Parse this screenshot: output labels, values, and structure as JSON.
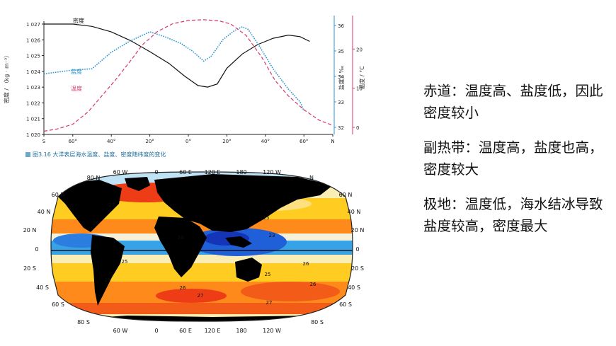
{
  "figure": {
    "caption": "图3.16  大洋表层海水温度、盐度、密度随纬度的变化"
  },
  "chart_data": {
    "type": "line",
    "x_ticks": [
      "S",
      "60°",
      "40°",
      "20°",
      "0°",
      "20°",
      "40°",
      "60°",
      "N"
    ],
    "x": [
      -75,
      -60,
      -40,
      -20,
      0,
      20,
      40,
      60,
      75
    ],
    "ylabel_density": "密度 / （kg · m⁻³）",
    "ylabel_salinity": "盐度 / ‰",
    "ylabel_temperature": "温度 / °C",
    "density_ticks": [
      "1 027",
      "1 026",
      "1 025",
      "1 024",
      "1 023",
      "1 022",
      "1 021",
      "1 020"
    ],
    "salinity_ticks": [
      "36",
      "35",
      "34",
      "33",
      "32"
    ],
    "temperature_ticks": [
      "20",
      "10",
      "0"
    ],
    "series": [
      {
        "name": "密度",
        "axis": "density",
        "color": "#111111",
        "points": [
          [
            -75,
            1027.0
          ],
          [
            -60,
            1027.0
          ],
          [
            -50,
            1026.85
          ],
          [
            -40,
            1026.5
          ],
          [
            -30,
            1025.95
          ],
          [
            -20,
            1025.25
          ],
          [
            -10,
            1024.5
          ],
          [
            -2,
            1023.7
          ],
          [
            5,
            1023.1
          ],
          [
            10,
            1023.0
          ],
          [
            15,
            1023.2
          ],
          [
            20,
            1024.2
          ],
          [
            28,
            1025.1
          ],
          [
            36,
            1025.7
          ],
          [
            44,
            1026.1
          ],
          [
            52,
            1026.3
          ],
          [
            58,
            1026.2
          ],
          [
            63,
            1025.9
          ]
        ]
      },
      {
        "name": "盐度",
        "axis": "salinity",
        "color": "#2f96d0",
        "points": [
          [
            -75,
            34.1
          ],
          [
            -60,
            34.25
          ],
          [
            -50,
            34.3
          ],
          [
            -40,
            34.95
          ],
          [
            -30,
            35.4
          ],
          [
            -20,
            35.75
          ],
          [
            -12,
            35.55
          ],
          [
            -4,
            35.3
          ],
          [
            2,
            35.0
          ],
          [
            8,
            34.6
          ],
          [
            12,
            34.8
          ],
          [
            18,
            35.45
          ],
          [
            24,
            35.8
          ],
          [
            28,
            35.95
          ],
          [
            31,
            35.85
          ],
          [
            36,
            35.3
          ],
          [
            44,
            34.3
          ],
          [
            52,
            33.5
          ],
          [
            58,
            33.0
          ],
          [
            60,
            32.65
          ]
        ]
      },
      {
        "name": "温度",
        "axis": "temperature",
        "color": "#d8356f",
        "points": [
          [
            -75,
            -1.0
          ],
          [
            -68,
            -0.4
          ],
          [
            -60,
            0.8
          ],
          [
            -52,
            4.0
          ],
          [
            -45,
            8.0
          ],
          [
            -38,
            12.0
          ],
          [
            -30,
            17.0
          ],
          [
            -24,
            21.0
          ],
          [
            -16,
            24.5
          ],
          [
            -8,
            26.5
          ],
          [
            0,
            27.3
          ],
          [
            8,
            27.5
          ],
          [
            16,
            27.2
          ],
          [
            22,
            26.4
          ],
          [
            30,
            23.5
          ],
          [
            38,
            18.0
          ],
          [
            45,
            12.0
          ],
          [
            52,
            8.0
          ],
          [
            60,
            4.5
          ],
          [
            68,
            1.8
          ],
          [
            75,
            0.5
          ]
        ]
      }
    ]
  },
  "map": {
    "lon_labels": [
      "60 W",
      "0",
      "60 E",
      "120 E",
      "180",
      "120 W"
    ],
    "lat_labels_left": [
      "80 N",
      "60 N",
      "40 N",
      "20 N",
      "0",
      "20 S",
      "40 S",
      "60 S",
      "80 S"
    ],
    "lat_labels_right": [
      "N",
      "60 N",
      "40 N",
      "20 N",
      "0",
      "20 S",
      "40 S",
      "60 S",
      "80 S"
    ],
    "contours": [
      "27",
      "26",
      "25",
      "24",
      "23",
      "25",
      "26",
      "24",
      "25",
      "26",
      "27",
      "27",
      "26"
    ]
  },
  "notes": [
    {
      "text": "赤道：温度高、盐度低，因此密度较小"
    },
    {
      "text": "副热带：温度高，盐度也高，密度较大"
    },
    {
      "text": "极地：温度低，海水结冰导致盐度较高，密度最大"
    }
  ]
}
